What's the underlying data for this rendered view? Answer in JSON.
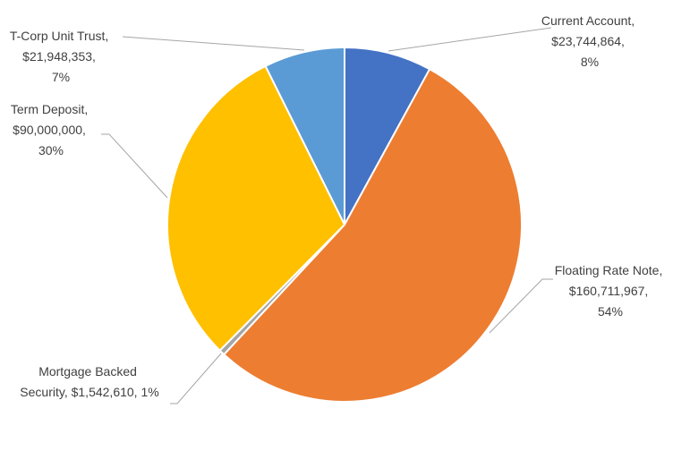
{
  "chart_data": {
    "type": "pie",
    "title": "",
    "slices": [
      {
        "label": "Current Account",
        "value": 23744864,
        "value_text": "$23,744,864",
        "percent_text": "8%",
        "color": "#4472c4"
      },
      {
        "label": "Floating Rate Note",
        "value": 160711967,
        "value_text": "$160,711,967",
        "percent_text": "54%",
        "color": "#ed7d31"
      },
      {
        "label": "Mortgage Backed Security",
        "value": 1542610,
        "value_text": "$1,542,610",
        "percent_text": "1%",
        "color": "#a5a5a5"
      },
      {
        "label": "Term Deposit",
        "value": 90000000,
        "value_text": "$90,000,000",
        "percent_text": "30%",
        "color": "#ffc000"
      },
      {
        "label": "T-Corp Unit Trust",
        "value": 21948353,
        "value_text": "$21,948,353",
        "percent_text": "7%",
        "color": "#5b9bd5"
      }
    ],
    "labels": [
      {
        "lines": [
          "Current Account,",
          "$23,744,864,",
          "8%"
        ]
      },
      {
        "lines": [
          "Floating Rate Note,",
          "$160,711,967,",
          "54%"
        ]
      },
      {
        "lines": [
          "Mortgage Backed",
          "Security, $1,542,610,  1%"
        ]
      },
      {
        "lines": [
          "Term Deposit,",
          "$90,000,000,",
          "30%"
        ]
      },
      {
        "lines": [
          "T-Corp Unit Trust,",
          "$21,948,353,",
          "7%"
        ]
      }
    ]
  }
}
